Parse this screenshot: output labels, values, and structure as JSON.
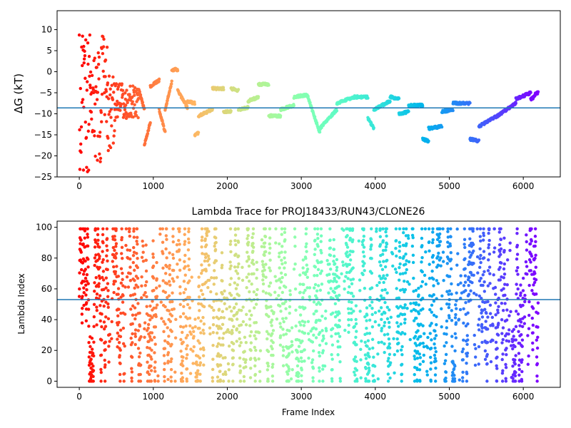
{
  "chart_data": [
    {
      "type": "scatter",
      "title": "",
      "xlabel": "",
      "ylabel": "ΔG (kT)",
      "xlim": [
        -300,
        6500
      ],
      "ylim": [
        -25,
        14.5
      ],
      "xticks": [
        0,
        1000,
        2000,
        3000,
        4000,
        5000,
        6000
      ],
      "yticks": [
        -25,
        -20,
        -15,
        -10,
        -5,
        0,
        5,
        10
      ],
      "reference_line": {
        "y": -8.6,
        "color": "#1f77b4"
      },
      "color_scheme": "rainbow (red at frame 0 to violet at last frame)",
      "grid": false,
      "segments": [
        {
          "x": [
            0,
            60
          ],
          "y": [
            10.0,
            -25.0
          ],
          "pattern": "scatter-sweep"
        },
        {
          "x": [
            60,
            150
          ],
          "y": [
            12.5,
            -25.0
          ],
          "pattern": "scatter-sweep"
        },
        {
          "x": [
            150,
            300
          ],
          "y": [
            6.0,
            -22.0
          ],
          "pattern": "scatter-sweep"
        },
        {
          "x": [
            300,
            380
          ],
          "y": [
            12.5,
            -12.0
          ],
          "pattern": "scatter-sweep"
        },
        {
          "x": [
            380,
            480
          ],
          "y": [
            -1.0,
            -19.0
          ],
          "pattern": "scatter-sweep"
        },
        {
          "x": [
            480,
            640
          ],
          "y": [
            -2.0,
            -12.0
          ],
          "pattern": "scatter-sweep"
        },
        {
          "x": [
            640,
            800
          ],
          "y": [
            -3.0,
            -11.0
          ],
          "pattern": "scatter-sweep"
        },
        {
          "x": [
            800,
            880
          ],
          "y": [
            -4.0,
            -9.0
          ],
          "pattern": "ramp"
        },
        {
          "x": [
            880,
            960
          ],
          "y": [
            -17.5,
            -12.0
          ],
          "pattern": "ramp"
        },
        {
          "x": [
            960,
            1080
          ],
          "y": [
            -3.5,
            -2.0
          ],
          "pattern": "ramp"
        },
        {
          "x": [
            1080,
            1160
          ],
          "y": [
            -9.0,
            -14.5
          ],
          "pattern": "ramp"
        },
        {
          "x": [
            1160,
            1250
          ],
          "y": [
            -9.0,
            -2.5
          ],
          "pattern": "ramp"
        },
        {
          "x": [
            1250,
            1330
          ],
          "y": [
            0.5,
            0.5
          ],
          "pattern": "ramp"
        },
        {
          "x": [
            1330,
            1460
          ],
          "y": [
            -4.5,
            -8.5
          ],
          "pattern": "ramp"
        },
        {
          "x": [
            1460,
            1560
          ],
          "y": [
            -7.0,
            -7.5
          ],
          "pattern": "ramp"
        },
        {
          "x": [
            1560,
            1610
          ],
          "y": [
            -15.0,
            -14.5
          ],
          "pattern": "ramp"
        },
        {
          "x": [
            1610,
            1800
          ],
          "y": [
            -10.5,
            -9.0
          ],
          "pattern": "ramp"
        },
        {
          "x": [
            1800,
            1950
          ],
          "y": [
            -4.0,
            -4.0
          ],
          "pattern": "ramp"
        },
        {
          "x": [
            1950,
            2050
          ],
          "y": [
            -9.5,
            -9.5
          ],
          "pattern": "ramp"
        },
        {
          "x": [
            2050,
            2150
          ],
          "y": [
            -4.0,
            -4.5
          ],
          "pattern": "ramp"
        },
        {
          "x": [
            2150,
            2280
          ],
          "y": [
            -9.0,
            -8.5
          ],
          "pattern": "ramp"
        },
        {
          "x": [
            2280,
            2420
          ],
          "y": [
            -7.0,
            -6.0
          ],
          "pattern": "ramp"
        },
        {
          "x": [
            2420,
            2560
          ],
          "y": [
            -3.0,
            -3.0
          ],
          "pattern": "ramp"
        },
        {
          "x": [
            2560,
            2720
          ],
          "y": [
            -10.5,
            -10.5
          ],
          "pattern": "ramp"
        },
        {
          "x": [
            2720,
            2900
          ],
          "y": [
            -9.0,
            -8.0
          ],
          "pattern": "ramp"
        },
        {
          "x": [
            2900,
            3080
          ],
          "y": [
            -6.0,
            -5.5
          ],
          "pattern": "ramp"
        },
        {
          "x": [
            3080,
            3250
          ],
          "y": [
            -5.5,
            -14.5
          ],
          "pattern": "ramp"
        },
        {
          "x": [
            3250,
            3480
          ],
          "y": [
            -13.5,
            -9.0
          ],
          "pattern": "ramp"
        },
        {
          "x": [
            3480,
            3720
          ],
          "y": [
            -7.5,
            -6.0
          ],
          "pattern": "ramp"
        },
        {
          "x": [
            3720,
            3900
          ],
          "y": [
            -6.0,
            -6.0
          ],
          "pattern": "ramp"
        },
        {
          "x": [
            3900,
            3980
          ],
          "y": [
            -11.0,
            -13.5
          ],
          "pattern": "ramp"
        },
        {
          "x": [
            3980,
            4200
          ],
          "y": [
            -9.0,
            -7.0
          ],
          "pattern": "ramp"
        },
        {
          "x": [
            4200,
            4320
          ],
          "y": [
            -6.0,
            -6.5
          ],
          "pattern": "ramp"
        },
        {
          "x": [
            4320,
            4450
          ],
          "y": [
            -10.0,
            -9.5
          ],
          "pattern": "ramp"
        },
        {
          "x": [
            4450,
            4640
          ],
          "y": [
            -8.0,
            -8.0
          ],
          "pattern": "ramp"
        },
        {
          "x": [
            4640,
            4720
          ],
          "y": [
            -16.0,
            -16.5
          ],
          "pattern": "ramp"
        },
        {
          "x": [
            4720,
            4900
          ],
          "y": [
            -13.5,
            -13.0
          ],
          "pattern": "ramp"
        },
        {
          "x": [
            4900,
            5050
          ],
          "y": [
            -9.5,
            -9.0
          ],
          "pattern": "ramp"
        },
        {
          "x": [
            5050,
            5280
          ],
          "y": [
            -7.5,
            -7.5
          ],
          "pattern": "ramp"
        },
        {
          "x": [
            5280,
            5400
          ],
          "y": [
            -16.0,
            -16.5
          ],
          "pattern": "ramp"
        },
        {
          "x": [
            5400,
            5650
          ],
          "y": [
            -13.0,
            -10.5
          ],
          "pattern": "ramp"
        },
        {
          "x": [
            5650,
            5900
          ],
          "y": [
            -10.5,
            -7.5
          ],
          "pattern": "ramp"
        },
        {
          "x": [
            5900,
            6100
          ],
          "y": [
            -6.5,
            -5.0
          ],
          "pattern": "ramp"
        },
        {
          "x": [
            6100,
            6150
          ],
          "y": [
            -6.5,
            -6.0
          ],
          "pattern": "ramp"
        },
        {
          "x": [
            6150,
            6200
          ],
          "y": [
            -5.5,
            -5.0
          ],
          "pattern": "ramp"
        }
      ]
    },
    {
      "type": "scatter",
      "title": "Lambda Trace for PROJ18433/RUN43/CLONE26",
      "xlabel": "Frame Index",
      "ylabel": "Lambda Index",
      "xlim": [
        -300,
        6500
      ],
      "ylim": [
        -4,
        104
      ],
      "xticks": [
        0,
        1000,
        2000,
        3000,
        4000,
        5000,
        6000
      ],
      "yticks": [
        0,
        20,
        40,
        60,
        80,
        100
      ],
      "reference_line": {
        "y": 53,
        "color": "#1f77b4"
      },
      "color_scheme": "rainbow (red at frame 0 to violet at last frame)",
      "grid": false,
      "frames": [
        0,
        6200
      ],
      "lambda_range": [
        0,
        99
      ]
    }
  ]
}
